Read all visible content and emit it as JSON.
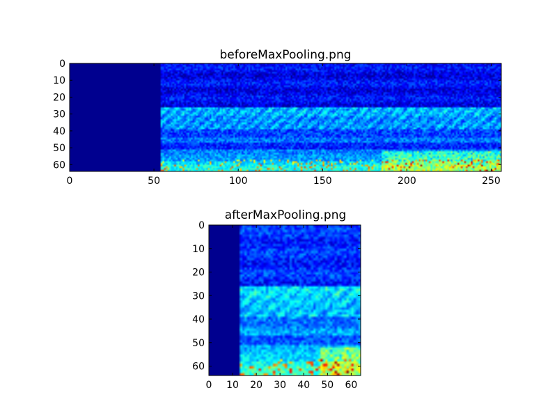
{
  "chart_data": [
    {
      "type": "heatmap",
      "title": "beforeMaxPooling.png",
      "colormap": "jet",
      "width": 256,
      "height": 64,
      "xlim": [
        0,
        256
      ],
      "ylim": [
        64,
        0
      ],
      "dark_columns_until": 54,
      "xticks": [
        0,
        50,
        100,
        150,
        200,
        250
      ],
      "yticks": [
        0,
        10,
        20,
        30,
        40,
        50,
        60
      ],
      "xlabel": "",
      "ylabel": ""
    },
    {
      "type": "heatmap",
      "title": "afterMaxPooling.png",
      "colormap": "jet",
      "width": 64,
      "height": 64,
      "xlim": [
        0,
        64
      ],
      "ylim": [
        64,
        0
      ],
      "dark_columns_until": 13,
      "xticks": [
        0,
        10,
        20,
        30,
        40,
        50,
        60
      ],
      "yticks": [
        0,
        10,
        20,
        30,
        40,
        50,
        60
      ],
      "xlabel": "",
      "ylabel": ""
    }
  ],
  "colors": {
    "background": "#ffffff",
    "dark_region": "#00008f"
  }
}
